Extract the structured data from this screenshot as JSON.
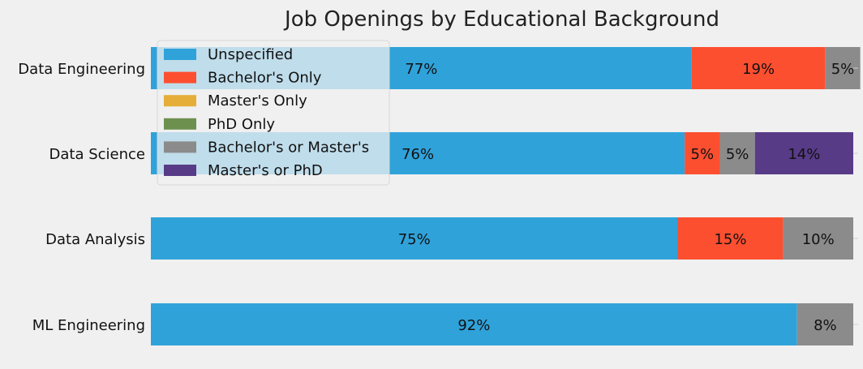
{
  "chart_data": {
    "type": "bar",
    "orientation": "horizontal",
    "stacked": true,
    "title": "Job Openings by Educational Background",
    "xlabel": "",
    "ylabel": "",
    "xlim": [
      0,
      100
    ],
    "grid": false,
    "legend_position": "upper-left",
    "categories": [
      "Data Engineering",
      "Data Science",
      "Data Analysis",
      "ML Engineering"
    ],
    "series": [
      {
        "name": "Unspecified",
        "color": "#30a2da",
        "values": [
          77,
          76,
          75,
          92
        ],
        "labels": [
          "77%",
          "76%",
          "75%",
          "92%"
        ]
      },
      {
        "name": "Bachelor's Only",
        "color": "#fc4f30",
        "values": [
          19,
          5,
          15,
          0
        ],
        "labels": [
          "19%",
          "5%",
          "15%",
          ""
        ]
      },
      {
        "name": "Master's Only",
        "color": "#e5ae38",
        "values": [
          0,
          0,
          0,
          0
        ],
        "labels": [
          "",
          "",
          "",
          ""
        ]
      },
      {
        "name": "PhD Only",
        "color": "#6d904f",
        "values": [
          0,
          0,
          0,
          0
        ],
        "labels": [
          "",
          "",
          "",
          ""
        ]
      },
      {
        "name": "Bachelor's or Master's",
        "color": "#8b8b8b",
        "values": [
          5,
          5,
          10,
          8
        ],
        "labels": [
          "5%",
          "5%",
          "10%",
          "8%"
        ]
      },
      {
        "name": "Master's or PhD",
        "color": "#583b87",
        "values": [
          0,
          14,
          0,
          0
        ],
        "labels": [
          "",
          "14%",
          "",
          ""
        ]
      }
    ]
  }
}
